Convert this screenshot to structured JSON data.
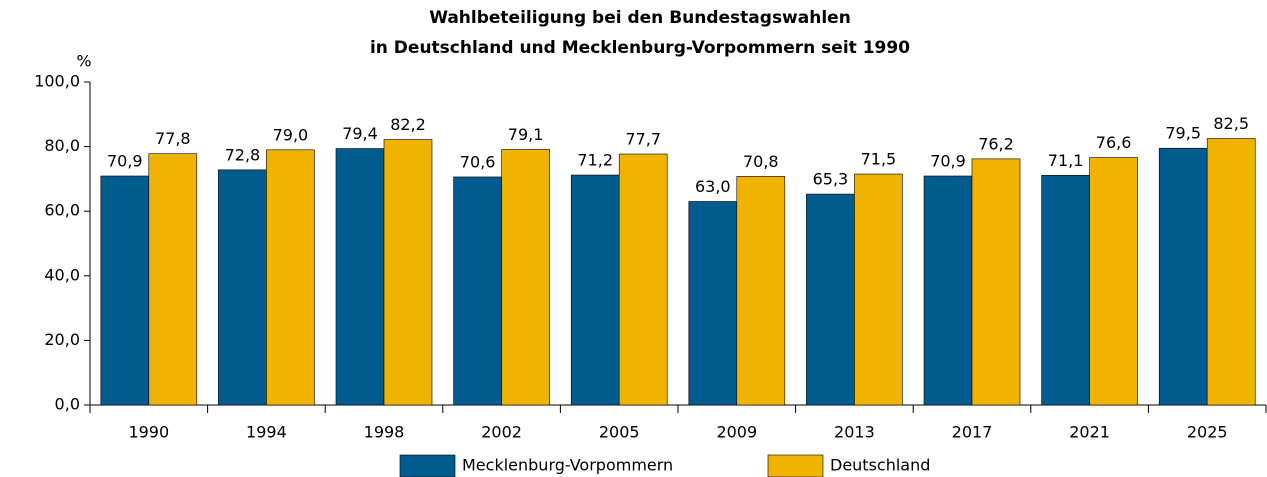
{
  "chart_data": {
    "type": "bar",
    "title": [
      "Wahlbeteiligung bei den Bundestagswahlen",
      "in Deutschland und Mecklenburg-Vorpommern seit 1990"
    ],
    "y_label": "%",
    "categories": [
      "1990",
      "1994",
      "1998",
      "2002",
      "2005",
      "2009",
      "2013",
      "2017",
      "2021",
      "2025"
    ],
    "series": [
      {
        "name": "Mecklenburg-Vorpommern",
        "color": "#005b8f",
        "values": [
          70.9,
          72.8,
          79.4,
          70.6,
          71.2,
          63.0,
          65.3,
          70.9,
          71.1,
          79.5
        ],
        "value_labels": [
          "70,9",
          "72,8",
          "79,4",
          "70,6",
          "71,2",
          "63,0",
          "65,3",
          "70,9",
          "71,1",
          "79,5"
        ]
      },
      {
        "name": "Deutschland",
        "color": "#f0b400",
        "values": [
          77.8,
          79.0,
          82.2,
          79.1,
          77.7,
          70.8,
          71.5,
          76.2,
          76.6,
          82.5
        ],
        "value_labels": [
          "77,8",
          "79,0",
          "82,2",
          "79,1",
          "77,7",
          "70,8",
          "71,5",
          "76,2",
          "76,6",
          "82,5"
        ]
      }
    ],
    "ylim": [
      0,
      100
    ],
    "yticks": [
      {
        "value": 0,
        "label": "0,0"
      },
      {
        "value": 20,
        "label": "20,0"
      },
      {
        "value": 40,
        "label": "40,0"
      },
      {
        "value": 60,
        "label": "60,0"
      },
      {
        "value": 80,
        "label": "80,0"
      },
      {
        "value": 100,
        "label": "100,0"
      }
    ],
    "grid": false,
    "legend": "bottom"
  }
}
